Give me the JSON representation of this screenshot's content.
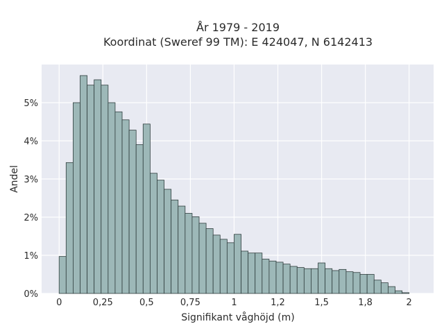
{
  "chart_data": {
    "type": "bar",
    "title": "År 1979 - 2019",
    "subtitle": "Koordinat (Sweref 99 TM): E 424047, N 6142413",
    "xlabel": "Signifikant våghöjd (m)",
    "ylabel": "Andel",
    "xlim": [
      -0.1,
      2.14
    ],
    "ylim": [
      0,
      0.06
    ],
    "bin_width": 0.04,
    "bin_start": 0,
    "x_ticks": [
      0,
      0.25,
      0.5,
      0.75,
      1,
      1.25,
      1.5,
      1.75,
      2
    ],
    "x_tick_labels": [
      "0",
      "0,25",
      "0,5",
      "0,75",
      "1",
      "1,2",
      "1,5",
      "1,8",
      "2"
    ],
    "y_ticks": [
      0,
      0.01,
      0.02,
      0.03,
      0.04,
      0.05
    ],
    "y_tick_labels": [
      "0%",
      "1%",
      "2%",
      "3%",
      "4%",
      "5%"
    ],
    "grid": true,
    "bar_color": "#9db8b8",
    "bar_edge_color": "#2f3d3d",
    "plot_bg": "#e8eaf2",
    "values": [
      0.0097,
      0.0343,
      0.05,
      0.0571,
      0.0546,
      0.056,
      0.0546,
      0.05,
      0.0476,
      0.0455,
      0.0428,
      0.039,
      0.0444,
      0.0315,
      0.0297,
      0.0273,
      0.0245,
      0.0229,
      0.021,
      0.0201,
      0.0184,
      0.017,
      0.0153,
      0.0142,
      0.0133,
      0.0155,
      0.0111,
      0.0106,
      0.0106,
      0.009,
      0.0085,
      0.0082,
      0.0077,
      0.0071,
      0.0068,
      0.0065,
      0.0065,
      0.008,
      0.0065,
      0.006,
      0.0063,
      0.0057,
      0.0055,
      0.005,
      0.005,
      0.0035,
      0.0028,
      0.0018,
      0.0007,
      0.0002
    ]
  }
}
